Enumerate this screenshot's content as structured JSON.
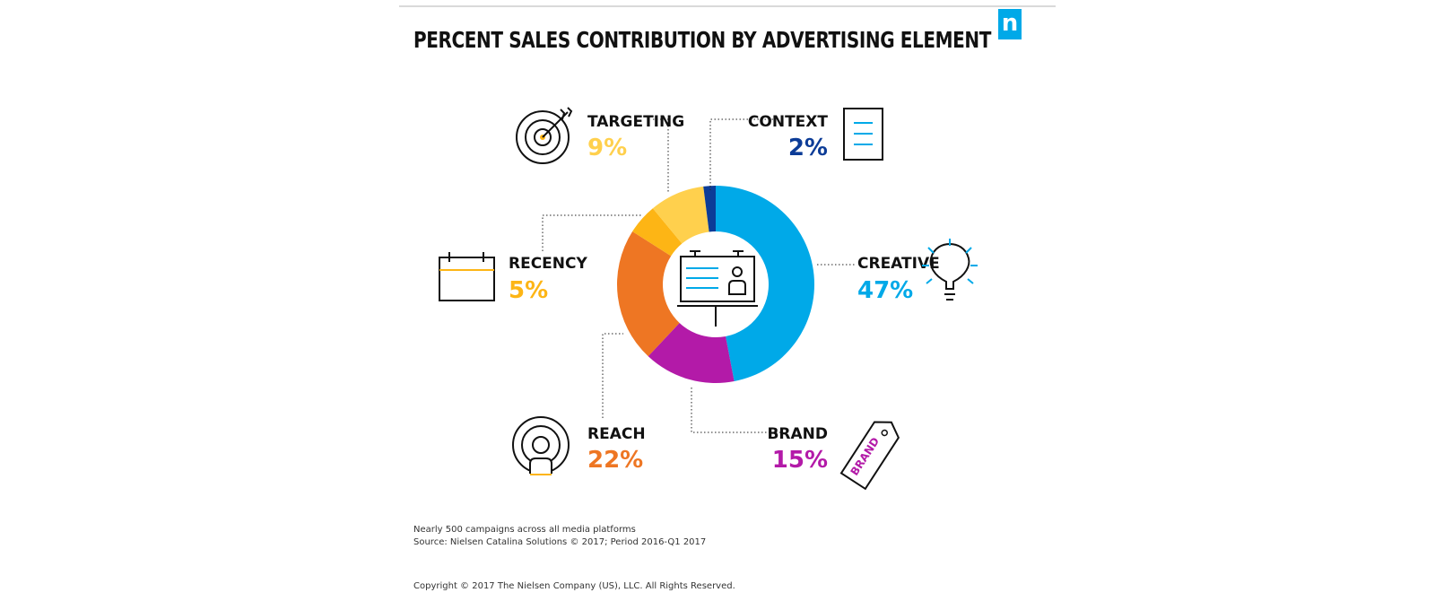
{
  "header": {
    "logo_text": "n",
    "title": "PERCENT SALES CONTRIBUTION BY ADVERTISING ELEMENT"
  },
  "chart_data": {
    "type": "pie",
    "variant": "donut",
    "title": "PERCENT SALES CONTRIBUTION BY ADVERTISING ELEMENT",
    "unit": "%",
    "slices": [
      {
        "label": "CREATIVE",
        "value": 47,
        "display": "47%",
        "color": "#00a9e8",
        "icon": "lightbulb-icon"
      },
      {
        "label": "BRAND",
        "value": 15,
        "display": "15%",
        "color": "#b31aa8",
        "icon": "price-tag-icon",
        "icon_text": "BRAND"
      },
      {
        "label": "REACH",
        "value": 22,
        "display": "22%",
        "color": "#ee7623",
        "icon": "broadcast-person-icon"
      },
      {
        "label": "RECENCY",
        "value": 5,
        "display": "5%",
        "color": "#fdb515",
        "icon": "calendar-icon"
      },
      {
        "label": "TARGETING",
        "value": 9,
        "display": "9%",
        "color": "#ffd04d",
        "icon": "target-icon"
      },
      {
        "label": "CONTEXT",
        "value": 2,
        "display": "2%",
        "color": "#0c3c97",
        "icon": "document-icon"
      }
    ],
    "center_icon": "billboard-icon"
  },
  "footer": {
    "note_line1": "Nearly 500 campaigns across all media platforms",
    "note_line2": "Source: Nielsen Catalina Solutions © 2017; Period 2016-Q1 2017",
    "copyright": "Copyright © 2017 The Nielsen Company (US), LLC. All Rights Reserved."
  }
}
